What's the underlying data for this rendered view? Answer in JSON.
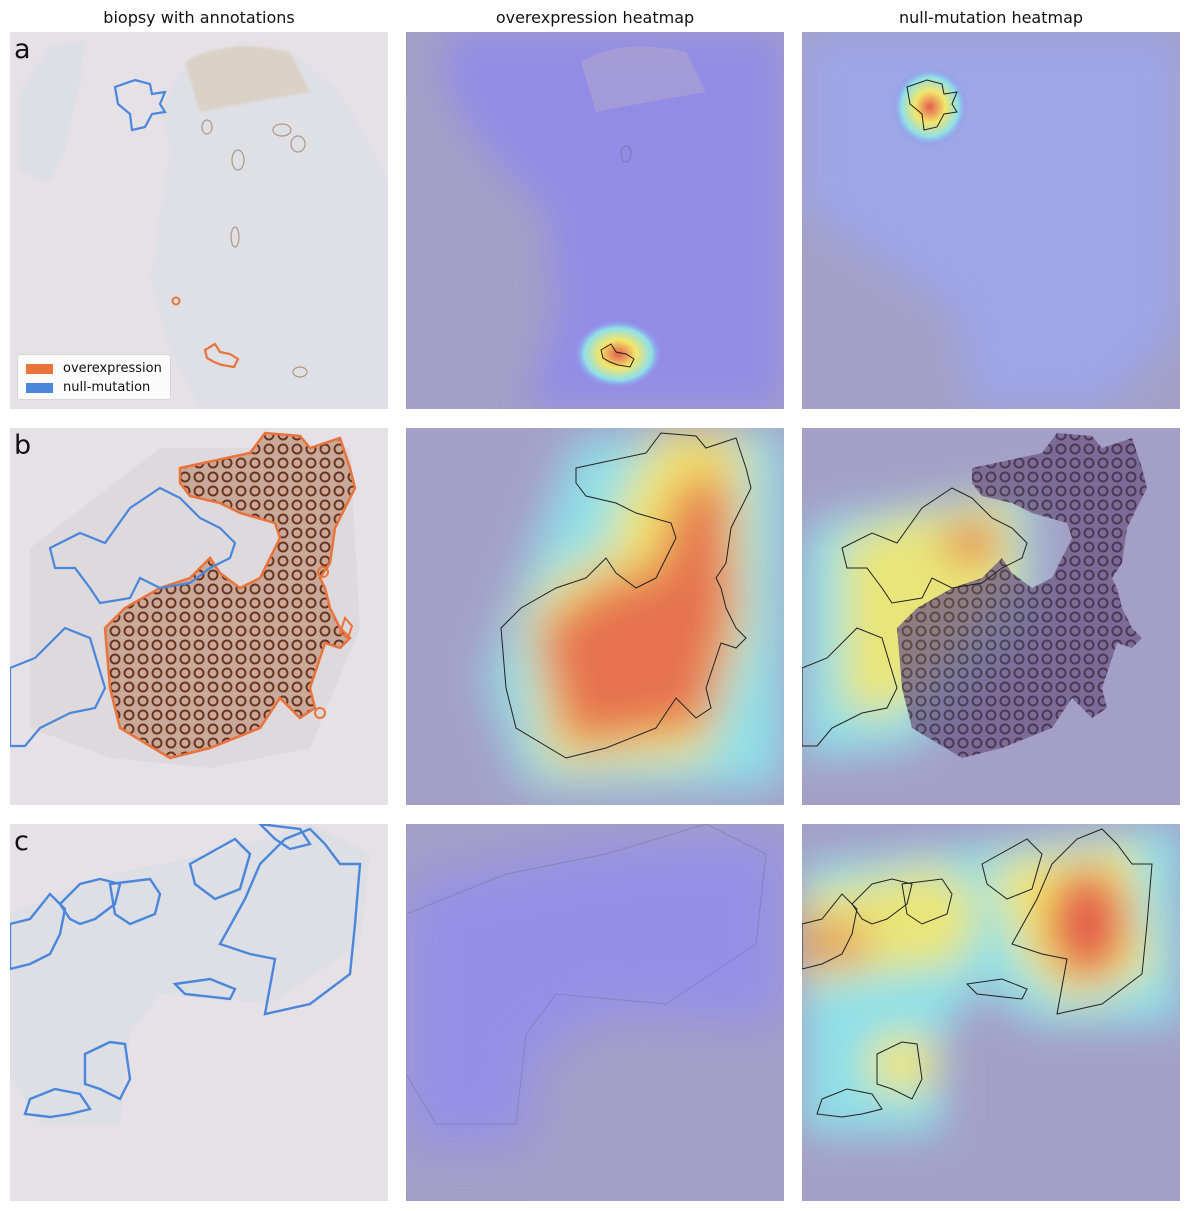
{
  "columns": [
    {
      "title": "biopsy with annotations"
    },
    {
      "title": "overexpression heatmap"
    },
    {
      "title": "null-mutation heatmap"
    }
  ],
  "rows": [
    {
      "label": "a"
    },
    {
      "label": "b"
    },
    {
      "label": "c"
    }
  ],
  "legend": {
    "items": [
      {
        "label": "overexpression",
        "color": "#e8743b"
      },
      {
        "label": "null-mutation",
        "color": "#4a87db"
      }
    ]
  },
  "colors": {
    "tissue_background": "#e6e1e6",
    "heatmap_base": "#a49fc6",
    "heatmap_low": "#8c85f0",
    "heatmap_mid": "#f3e66b",
    "heatmap_high": "#e35d4b"
  }
}
